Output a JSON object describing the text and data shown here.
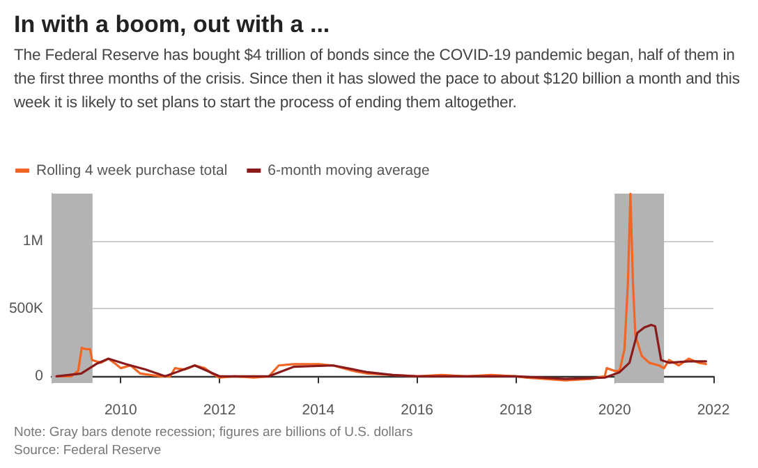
{
  "chart_data": {
    "type": "line",
    "title": "In with a boom, out with a ...",
    "subtitle": "The Federal Reserve has bought $4 trillion of bonds since the COVID-19 pandemic began, half of them in the first three months of the crisis. Since then it has slowed the pace to about $120 billion a month and this week it is likely to set plans to start the process of ending them altogether.",
    "annotations": [
      "Note: Gray bars denote recession; figures are billions of U.S. dollars",
      "Source: Federal Reserve"
    ],
    "series": [
      {
        "name": "Rolling 4 week purchase total",
        "color": "#f26522",
        "x": [
          2008.7,
          2009.0,
          2009.14,
          2009.21,
          2009.3,
          2009.38,
          2009.42,
          2009.6,
          2009.75,
          2009.9,
          2010.0,
          2010.2,
          2010.4,
          2010.6,
          2010.8,
          2011.0,
          2011.1,
          2011.3,
          2011.5,
          2011.7,
          2011.85,
          2012.0,
          2012.3,
          2012.7,
          2013.0,
          2013.1,
          2013.2,
          2013.5,
          2013.8,
          2014.0,
          2014.3,
          2014.7,
          2015.0,
          2015.5,
          2016.0,
          2016.5,
          2017.0,
          2017.5,
          2018.0,
          2018.2,
          2018.6,
          2019.0,
          2019.5,
          2019.8,
          2019.84,
          2020.0,
          2020.1,
          2020.2,
          2020.27,
          2020.32,
          2020.37,
          2020.42,
          2020.48,
          2020.55,
          2020.7,
          2020.9,
          2021.0,
          2021.1,
          2021.3,
          2021.5,
          2021.7,
          2021.85
        ],
        "values": [
          0,
          0,
          40000,
          210000,
          200000,
          200000,
          120000,
          100000,
          130000,
          90000,
          60000,
          80000,
          20000,
          10000,
          0,
          0,
          60000,
          50000,
          80000,
          60000,
          20000,
          -10000,
          0,
          -10000,
          0,
          40000,
          80000,
          90000,
          90000,
          90000,
          80000,
          40000,
          20000,
          10000,
          0,
          10000,
          0,
          10000,
          0,
          -10000,
          -20000,
          -30000,
          -20000,
          0,
          60000,
          40000,
          40000,
          200000,
          700000,
          1350000,
          700000,
          300000,
          230000,
          150000,
          100000,
          80000,
          60000,
          120000,
          80000,
          130000,
          100000,
          90000
        ]
      },
      {
        "name": "6-month moving average",
        "color": "#8b1a1a",
        "x": [
          2008.7,
          2009.2,
          2009.5,
          2009.75,
          2010.1,
          2010.5,
          2010.9,
          2011.2,
          2011.5,
          2012.0,
          2013.0,
          2013.5,
          2014.3,
          2015.0,
          2015.5,
          2016.0,
          2018.0,
          2019.0,
          2019.8,
          2020.1,
          2020.3,
          2020.46,
          2020.6,
          2020.74,
          2020.82,
          2020.94,
          2021.1,
          2021.5,
          2021.85
        ],
        "values": [
          0,
          20000,
          90000,
          130000,
          90000,
          50000,
          0,
          40000,
          80000,
          0,
          0,
          70000,
          80000,
          30000,
          10000,
          0,
          0,
          -20000,
          -10000,
          30000,
          100000,
          320000,
          360000,
          380000,
          370000,
          120000,
          100000,
          110000,
          110000
        ]
      }
    ],
    "xlim": [
      2008.6,
      2022
    ],
    "xticks": [
      2010,
      2012,
      2014,
      2016,
      2018,
      2020,
      2022
    ],
    "ylim": [
      -50000,
      1350000
    ],
    "yticks": [
      0,
      {
        "value": 500000,
        "label": "500K"
      },
      {
        "value": 1000000,
        "label": "1M"
      }
    ],
    "bands": [
      {
        "axis": "x",
        "from": 2008.6,
        "to": 2009.43,
        "color": "#b3b3b3"
      },
      {
        "axis": "x",
        "from": 2020.0,
        "to": 2021.0,
        "color": "#b3b3b3"
      }
    ],
    "grid": "y",
    "legend": "top left",
    "marker": "none",
    "line_style": "solid"
  }
}
